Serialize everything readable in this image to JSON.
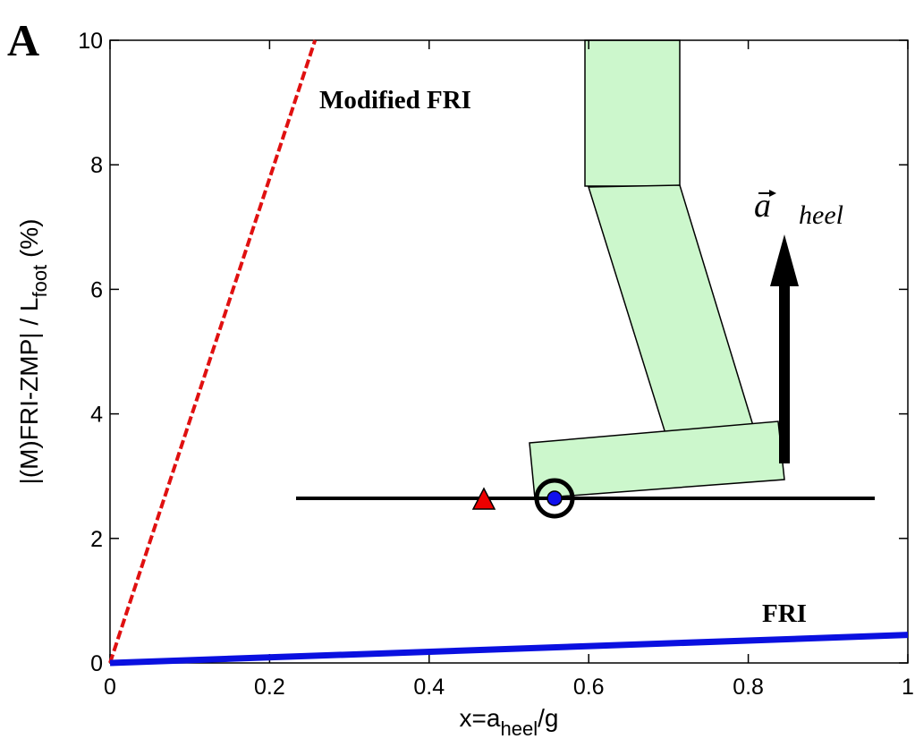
{
  "chart_data": {
    "type": "line",
    "panel_label": "A",
    "xlabel": [
      "x=a",
      "heel",
      "/g"
    ],
    "ylabel": [
      "|(M)FRI-ZMP| / L",
      "foot",
      " (%)"
    ],
    "xlim": [
      0,
      1
    ],
    "xticks": [
      0,
      0.2,
      0.4,
      0.6,
      0.8,
      1
    ],
    "ylim": [
      0,
      10
    ],
    "yticks": [
      0,
      2,
      4,
      6,
      8,
      10
    ],
    "series": [
      {
        "name": "Modified FRI",
        "color": "#e01010",
        "dash": true,
        "x": [
          0,
          0.257
        ],
        "values": [
          0,
          10
        ]
      },
      {
        "name": "FRI",
        "color": "#0a10e0",
        "dash": false,
        "x": [
          0,
          1
        ],
        "values": [
          0,
          0.45
        ]
      }
    ],
    "inset_label": [
      "a",
      "heel"
    ]
  }
}
